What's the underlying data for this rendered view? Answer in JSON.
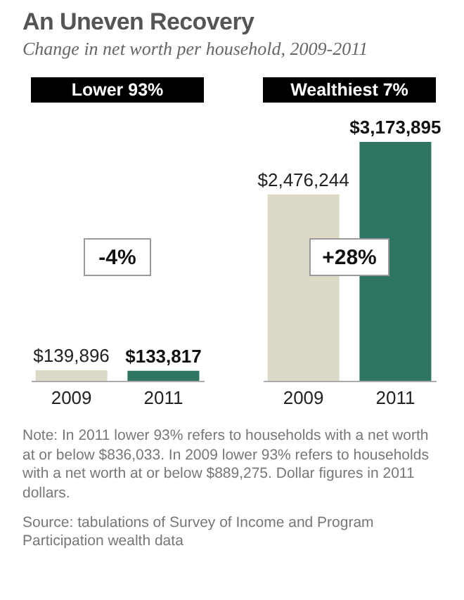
{
  "chart_data": [
    {
      "type": "other",
      "title": "An Uneven Recovery",
      "subtitle": "Change in net worth per household, 2009-2011"
    },
    {
      "type": "bar",
      "title": "Lower 93%",
      "categories": [
        "2009",
        "2011"
      ],
      "values": [
        139896,
        133817
      ],
      "value_labels": [
        "$139,896",
        "$133,817"
      ],
      "colors": [
        "#dcd9c6",
        "#2e7563"
      ],
      "annotations": [
        "-4%"
      ]
    },
    {
      "type": "bar",
      "title": "Wealthiest 7%",
      "categories": [
        "2009",
        "2011"
      ],
      "values": [
        2476244,
        3173895
      ],
      "value_labels": [
        "$2,476,244",
        "$3,173,895"
      ],
      "colors": [
        "#dcd9c6",
        "#2e7563"
      ],
      "annotations": [
        "+28%"
      ]
    },
    {
      "type": "other",
      "annotations": [
        "Note: In 2011 lower 93% refers to households with a net worth at or below $836,033. In 2009 lower 93% refers to households with a net worth at or below $889,275. Dollar figures in 2011 dollars.",
        "Source: tabulations of Survey of Income and Program Participation wealth data"
      ]
    }
  ]
}
